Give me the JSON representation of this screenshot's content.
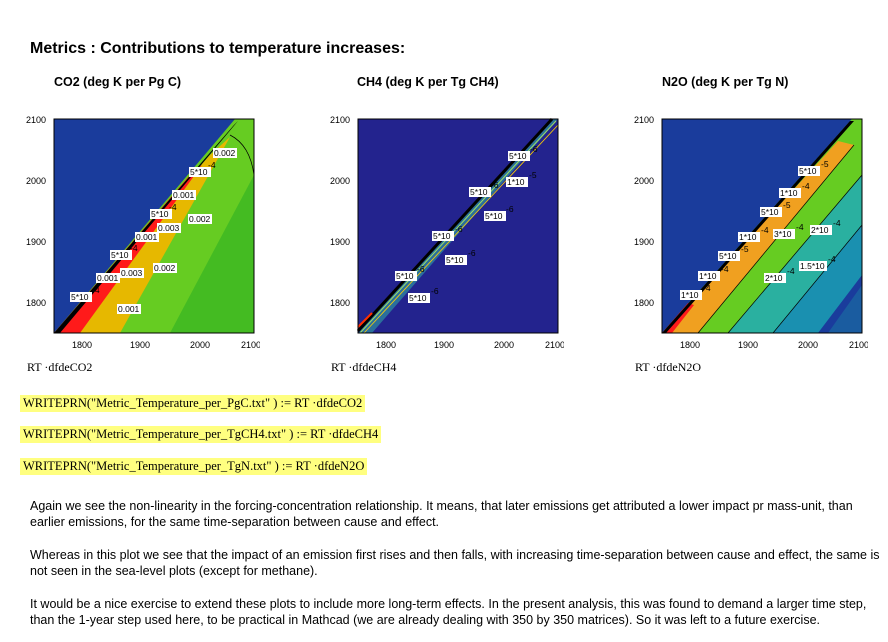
{
  "page": {
    "title": "Metrics : Contributions to temperature increases:"
  },
  "plots": [
    {
      "id": "co2",
      "title": "CO2 (deg K per Pg C)",
      "caption": "RT ·dfdeCO2",
      "x_ticks": [
        "1800",
        "1900",
        "2000",
        "2100"
      ],
      "y_ticks": [
        "1800",
        "1900",
        "2000",
        "2100"
      ],
      "labels": [
        "5*10",
        "-4",
        "0.001",
        "5*10",
        "-4",
        "0.001",
        "0.003",
        "5*10",
        "-4",
        "0.001",
        "0.003",
        "0.002",
        "5*10",
        "-4",
        "0.001",
        "0.002",
        "0.002"
      ],
      "colors": {
        "bg": "#1a3c9c",
        "band_red": "#ff1a1a",
        "band_orange": "#e6b800",
        "band_green": "#66cc22",
        "band_green2": "#44bb22"
      }
    },
    {
      "id": "ch4",
      "title": "CH4 (deg K per Tg CH4)",
      "caption": "RT ·dfdeCH4",
      "x_ticks": [
        "1800",
        "1900",
        "2000",
        "2100"
      ],
      "y_ticks": [
        "1800",
        "1900",
        "2000",
        "2100"
      ],
      "labels": [
        "5*10",
        "-6",
        "1*10",
        "-5",
        "5*10",
        "-6",
        "5*10",
        "-6",
        "5*10",
        "-6",
        "5*10",
        "-6",
        "5*10",
        "-6",
        "5*10",
        "-6",
        "5*10",
        "-6"
      ],
      "colors": {
        "bg": "#23238e",
        "band": "#2a6f9c"
      }
    },
    {
      "id": "n2o",
      "title": "N2O (deg K per Tg N)",
      "caption": "RT ·dfdeN2O",
      "x_ticks": [
        "1800",
        "1900",
        "2000",
        "2100"
      ],
      "y_ticks": [
        "1800",
        "1900",
        "2000",
        "2100"
      ],
      "labels": [
        "5*10",
        "-5",
        "1*10",
        "-4",
        "5*10",
        "-5",
        "1*10",
        "-4",
        "3*10",
        "-4",
        "2*10",
        "-4",
        "5*10",
        "-5",
        "1*10",
        "-4",
        "2*10",
        "-4",
        "1.5*10",
        "-4",
        "5*10",
        "-5",
        "1*10",
        "-4",
        "5*10",
        "-5"
      ],
      "colors": {
        "bg": "#1a3c9c",
        "band_red": "#ff1a1a",
        "band_orange": "#f0a020",
        "band_green": "#66cc22",
        "band_teal": "#2ab0a0",
        "band_teal2": "#1a90b0"
      }
    }
  ],
  "formulas": [
    "WRITEPRN(\"Metric_Temperature_per_PgC.txt\" ) := RT ·dfdeCO2",
    "WRITEPRN(\"Metric_Temperature_per_TgCH4.txt\" ) := RT ·dfdeCH4",
    "WRITEPRN(\"Metric_Temperature_per_TgN.txt\" ) := RT ·dfdeN2O"
  ],
  "paragraphs": [
    "Again we see the non-linearity in the forcing-concentration relationship. It means, that later emissions get attributed a lower impact pr mass-unit, than earlier emissions, for the same time-separation between cause and effect.",
    "Whereas in this plot we see that the impact of an emission first rises and then falls, with increasing time-separation between cause and effect, the same is not seen in the sea-level plots (except for methane).",
    "It would be a nice exercise to extend these plots to include more long-term effects. In the present analysis, this was found to demand a larger time step, than the 1-year step used here, to be practical in Mathcad (we are already dealing with 350 by 350 matrices). So it was left to a future exercise."
  ]
}
